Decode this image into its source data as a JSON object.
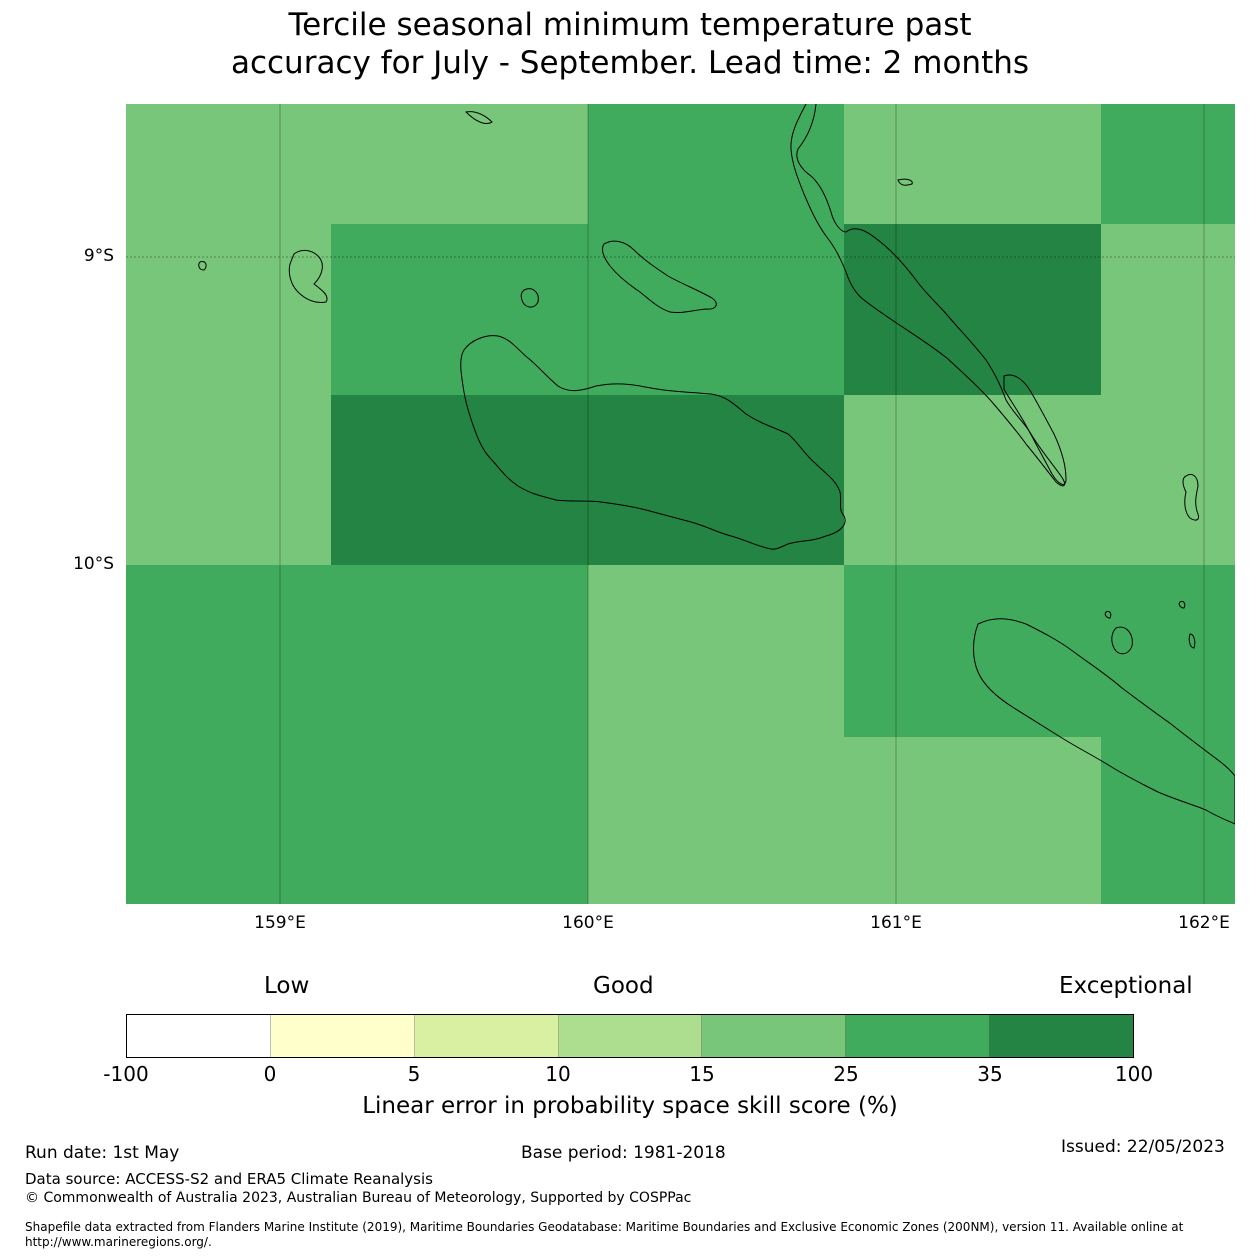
{
  "title_line1": "Tercile seasonal minimum temperature past",
  "title_line2": "accuracy for July - September. Lead time: 2 months",
  "map": {
    "lat_ticks": [
      "9°S",
      "10°S"
    ],
    "lon_ticks": [
      "159°E",
      "160°E",
      "161°E",
      "162°E"
    ],
    "extent": {
      "lon_min": 158.5,
      "lon_max": 162.1,
      "lat_min": -10.95,
      "lat_max": -8.55
    },
    "grid_cells": [
      {
        "row": 0,
        "col": 0,
        "category": "15-25"
      },
      {
        "row": 0,
        "col": 1,
        "category": "25-35"
      },
      {
        "row": 0,
        "col": 2,
        "category": "15-25"
      },
      {
        "row": 0,
        "col": 3,
        "category": "25-35"
      },
      {
        "row": 1,
        "col": 0,
        "category": "25-35"
      },
      {
        "row": 1,
        "col": 1,
        "category": "35-100"
      },
      {
        "row": 1,
        "col": 2,
        "category": "15-25"
      },
      {
        "row": 2,
        "col": 0,
        "category": "35-100"
      },
      {
        "row": 2,
        "col": 1,
        "category": "15-25"
      },
      {
        "row": 3,
        "col": 0,
        "category": "25-35"
      },
      {
        "row": 3,
        "col": 1,
        "category": "15-25"
      },
      {
        "row": 3,
        "col": 2,
        "category": "25-35"
      },
      {
        "row": 4,
        "col": 0,
        "category": "15-25"
      },
      {
        "row": 4,
        "col": 1,
        "category": "25-35"
      }
    ]
  },
  "colorbar": {
    "categories": [
      "Low",
      "Good",
      "Exceptional"
    ],
    "ticks": [
      "-100",
      "0",
      "5",
      "10",
      "15",
      "25",
      "35",
      "100"
    ],
    "colors": [
      "#ffffff",
      "#ffffcc",
      "#d9f0a3",
      "#addd8e",
      "#78c679",
      "#41ab5d",
      "#238443"
    ],
    "label": "Linear error in probability space skill score (%)"
  },
  "footer": {
    "run_date": "Run date: 1st May",
    "base_period": "Base period: 1981-2018",
    "issued": "Issued: 22/05/2023",
    "data_source": "Data source: ACCESS-S2 and ERA5 Climate Reanalysis",
    "copyright": "© Commonwealth of Australia 2023, Australian Bureau of Meteorology, Supported by COSPPac",
    "shapefile": "Shapefile data extracted from Flanders Marine Institute (2019), Maritime Boundaries Geodatabase: Maritime Boundaries and Exclusive Economic Zones (200NM), version 11. Available online at http://www.marineregions.org/."
  }
}
